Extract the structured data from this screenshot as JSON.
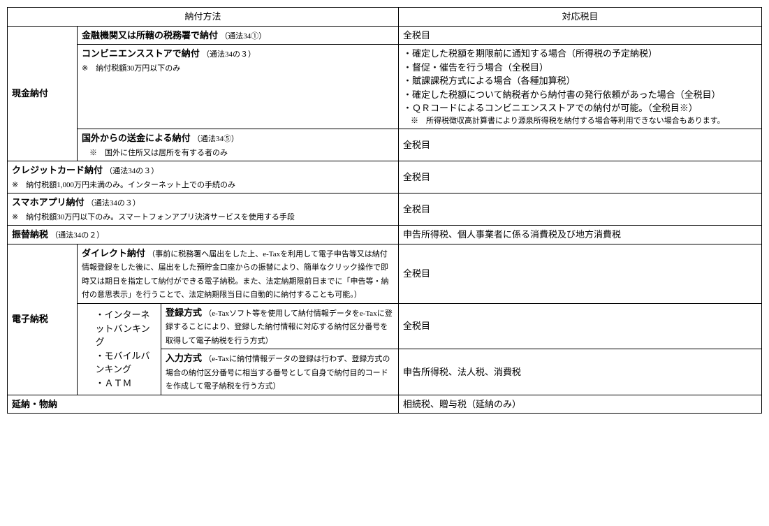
{
  "header": {
    "col1": "納付方法",
    "col2": "対応税目"
  },
  "r1": {
    "leftLabel": "現金納付",
    "a": {
      "title": "金融機関又は所轄の税務署で納付",
      "law": "（通法34①）",
      "right": "全税目"
    },
    "b": {
      "title": "コンビニエンスストアで納付",
      "law": "（通法34の３）",
      "note": "※　納付税額30万円以下のみ",
      "rightBullets": [
        "確定した税額を期限前に通知する場合（所得税の予定納税）",
        "督促・催告を行う場合（全税目）",
        "賦課課税方式による場合（各種加算税）",
        "確定した税額について納税者から納付書の発行依頼があった場合（全税目）",
        "ＱＲコードによるコンビニエンスストアでの納付が可能。（全税目※）"
      ],
      "rightNote": "※　所得税徴収高計算書により源泉所得税を納付する場合等利用できない場合もあります。"
    },
    "c": {
      "title": "国外からの送金による納付",
      "law": "（通法34⑤）",
      "note": "※　国外に住所又は居所を有する者のみ",
      "right": "全税目"
    }
  },
  "r2": {
    "title": "クレジットカード納付",
    "law": "（通法34の３）",
    "note": "※　納付税額1,000万円未満のみ。インターネット上での手続のみ",
    "right": "全税目"
  },
  "r3": {
    "title": "スマホアプリ納付",
    "law": "（通法34の３）",
    "note": "※　納付税額30万円以下のみ。スマートフォンアプリ決済サービスを使用する手段",
    "right": "全税目"
  },
  "r4": {
    "title": "振替納税",
    "law": "（通法34の２）",
    "right": "申告所得税、個人事業者に係る消費税及び地方消費税"
  },
  "r5": {
    "leftLabel": "電子納税",
    "a": {
      "title": "ダイレクト納付",
      "desc": "（事前に税務署へ届出をした上、e-Taxを利用して電子申告等又は納付情報登録をした後に、届出をした預貯金口座からの振替により、簡単なクリック操作で即時又は期日を指定して納付ができる電子納税。また、法定納期限前日までに「申告等・納付の意思表示」を行うことで、法定納期限当日に自動的に納付することも可能。）",
      "right": "全税目"
    },
    "midBullets": [
      "インターネットバンキング",
      "モバイルバンキング",
      "ＡＴＭ"
    ],
    "b": {
      "title": "登録方式",
      "desc": "（e-Taxソフト等を使用して納付情報データをe-Taxに登録することにより、登録した納付情報に対応する納付区分番号を取得して電子納税を行う方式）",
      "right": "全税目"
    },
    "c": {
      "title": "入力方式",
      "desc": "（e-Taxに納付情報データの登録は行わず、登録方式の場合の納付区分番号に相当する番号として自身で納付目的コードを作成して電子納税を行う方式）",
      "right": "申告所得税、法人税、消費税"
    }
  },
  "r6": {
    "title": "延納・物納",
    "right": "相続税、贈与税（延納のみ）"
  }
}
